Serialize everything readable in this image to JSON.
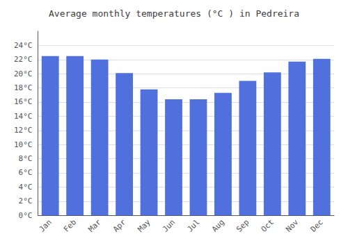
{
  "chart_data": {
    "type": "bar",
    "title": "Average monthly temperatures (°C ) in Pedreira",
    "categories": [
      "Jan",
      "Feb",
      "Mar",
      "Apr",
      "May",
      "Jun",
      "Jul",
      "Aug",
      "Sep",
      "Oct",
      "Nov",
      "Dec"
    ],
    "values": [
      22.5,
      22.5,
      22.0,
      20.1,
      17.8,
      16.4,
      16.4,
      17.3,
      19.0,
      20.2,
      21.7,
      22.1
    ],
    "ylim": [
      0,
      26
    ],
    "yticks": [
      {
        "value": 0,
        "label": "0°C"
      },
      {
        "value": 2,
        "label": "2°C"
      },
      {
        "value": 4,
        "label": "4°C"
      },
      {
        "value": 6,
        "label": "6°C"
      },
      {
        "value": 8,
        "label": "8°C"
      },
      {
        "value": 10,
        "label": "10°C"
      },
      {
        "value": 12,
        "label": "12°C"
      },
      {
        "value": 14,
        "label": "14°C"
      },
      {
        "value": 16,
        "label": "16°C"
      },
      {
        "value": 18,
        "label": "18°C"
      },
      {
        "value": 20,
        "label": "20°C"
      },
      {
        "value": 22,
        "label": "22°C"
      },
      {
        "value": 24,
        "label": "24°C"
      }
    ],
    "grid": true
  }
}
